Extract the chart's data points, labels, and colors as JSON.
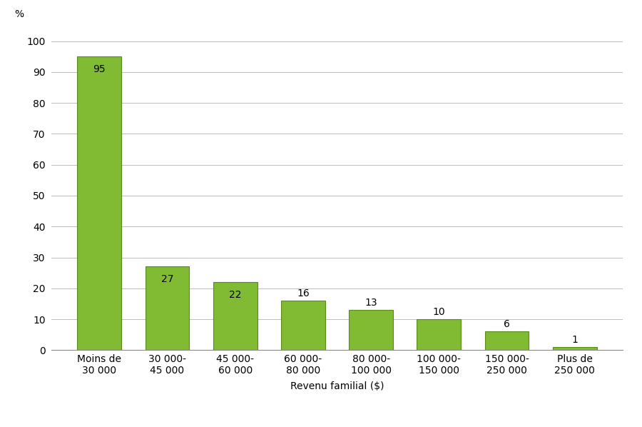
{
  "categories": [
    "Moins de\n30 000",
    "30 000-\n45 000",
    "45 000-\n60 000",
    "60 000-\n80 000",
    "80 000-\n100 000",
    "100 000-\n150 000",
    "150 000-\n250 000",
    "Plus de\n250 000"
  ],
  "values": [
    95,
    27,
    22,
    16,
    13,
    10,
    6,
    1
  ],
  "bar_color": "#80BB33",
  "bar_edge_color": "#5A8A1A",
  "xlabel": "Revenu familial ($)",
  "ylabel_topleft": "%",
  "ylim": [
    0,
    105
  ],
  "yticks": [
    0,
    10,
    20,
    30,
    40,
    50,
    60,
    70,
    80,
    90,
    100
  ],
  "background_color": "#ffffff",
  "grid_color": "#bbbbbb",
  "label_fontsize": 10,
  "xlabel_fontsize": 10,
  "tick_fontsize": 10,
  "value_fontsize": 10
}
